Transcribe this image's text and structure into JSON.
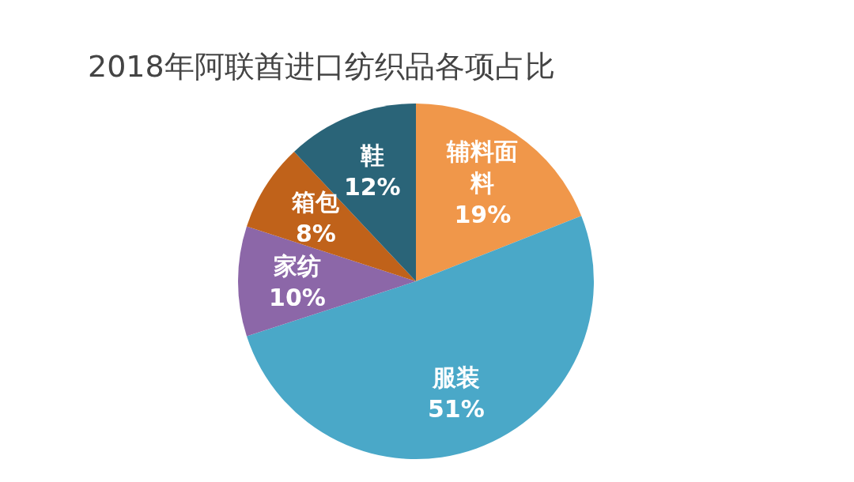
{
  "chart_data": {
    "type": "pie",
    "title": "2018年阿联酋进口纺织品各项占比",
    "categories": [
      "辅料面料",
      "服装",
      "家纺",
      "箱包",
      "鞋"
    ],
    "values": [
      19,
      51,
      10,
      8,
      12
    ],
    "colors": [
      "#f0974a",
      "#4aa8c8",
      "#8c67a8",
      "#c0621a",
      "#2a6478"
    ],
    "value_labels": [
      "19%",
      "51%",
      "10%",
      "8%",
      "12%"
    ],
    "legend": false
  }
}
